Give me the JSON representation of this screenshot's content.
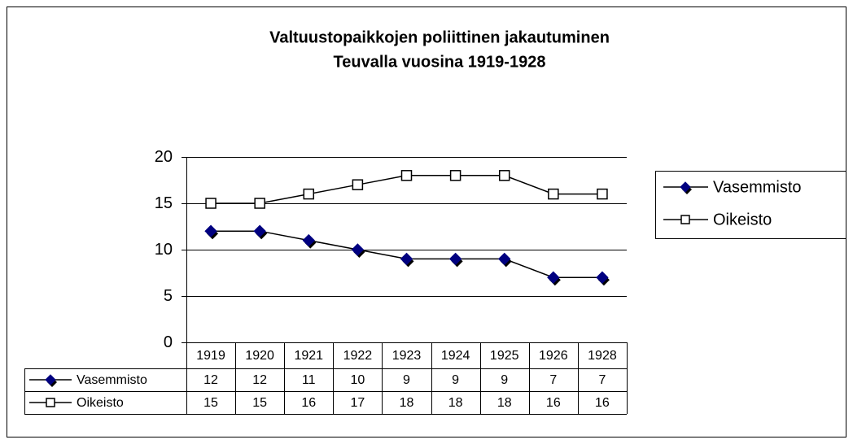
{
  "chart_data": {
    "type": "line",
    "title": [
      "Valtuustopaikkojen poliittinen jakautuminen",
      "Teuvalla vuosina 1919-1928"
    ],
    "categories": [
      "1919",
      "1920",
      "1921",
      "1922",
      "1923",
      "1924",
      "1925",
      "1926",
      "1928"
    ],
    "series": [
      {
        "name": "Vasemmisto",
        "color": "#000080",
        "marker": "diamond",
        "values": [
          12,
          12,
          11,
          10,
          9,
          9,
          9,
          7,
          7
        ]
      },
      {
        "name": "Oikeisto",
        "color": "#ffffff",
        "marker": "square",
        "values": [
          15,
          15,
          16,
          17,
          18,
          18,
          18,
          16,
          16
        ]
      }
    ],
    "ylim": [
      0,
      20
    ],
    "yticks": [
      0,
      5,
      10,
      15,
      20
    ],
    "grid": true,
    "legend": "right"
  }
}
